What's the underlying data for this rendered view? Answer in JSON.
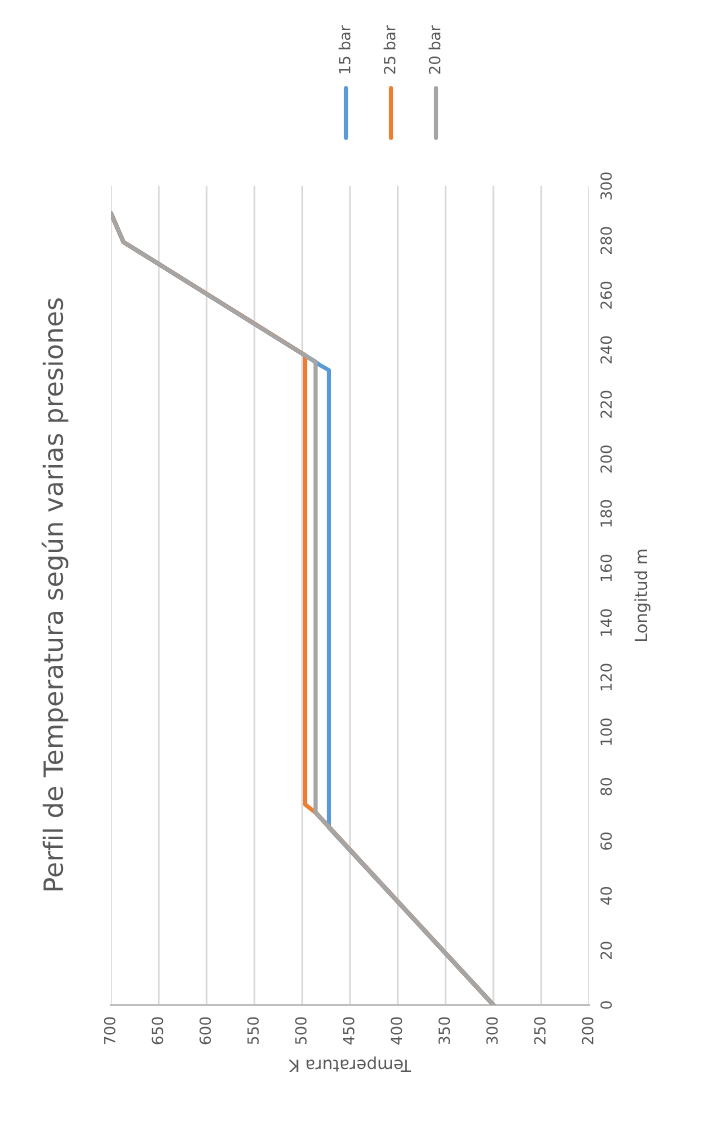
{
  "chart_data": {
    "type": "line",
    "title": "Perfil de Temperatura según varias presiones",
    "xlabel": "Temperatura K",
    "ylabel": "Longitud m",
    "ylim": [
      0,
      300
    ],
    "yticks": [
      0,
      20,
      40,
      60,
      80,
      100,
      120,
      140,
      160,
      180,
      200,
      220,
      240,
      260,
      280,
      300
    ],
    "xlim": [
      700,
      200
    ],
    "xticks": [
      700,
      650,
      600,
      550,
      500,
      450,
      400,
      350,
      300,
      250,
      200
    ],
    "grid": "x",
    "legend": "top right",
    "marker": "none",
    "line_style": "solid",
    "series": [
      {
        "name": "15 bar",
        "color": "#5b9bd5",
        "x": [
          300,
          472,
          472,
          482,
          488,
          687,
          700
        ],
        "values": [
          0,
          65,
          232.5,
          234.5,
          236,
          279.5,
          290
        ]
      },
      {
        "name": "25 bar",
        "color": "#ed7d31",
        "x": [
          300,
          486,
          497,
          497,
          687,
          700
        ],
        "values": [
          0,
          70.5,
          73.5,
          238,
          279.5,
          290
        ]
      },
      {
        "name": "20 bar",
        "color": "#a5a5a5",
        "x": [
          300,
          486,
          486,
          687,
          700
        ],
        "values": [
          0,
          70.5,
          235.5,
          279.5,
          290
        ]
      }
    ]
  }
}
